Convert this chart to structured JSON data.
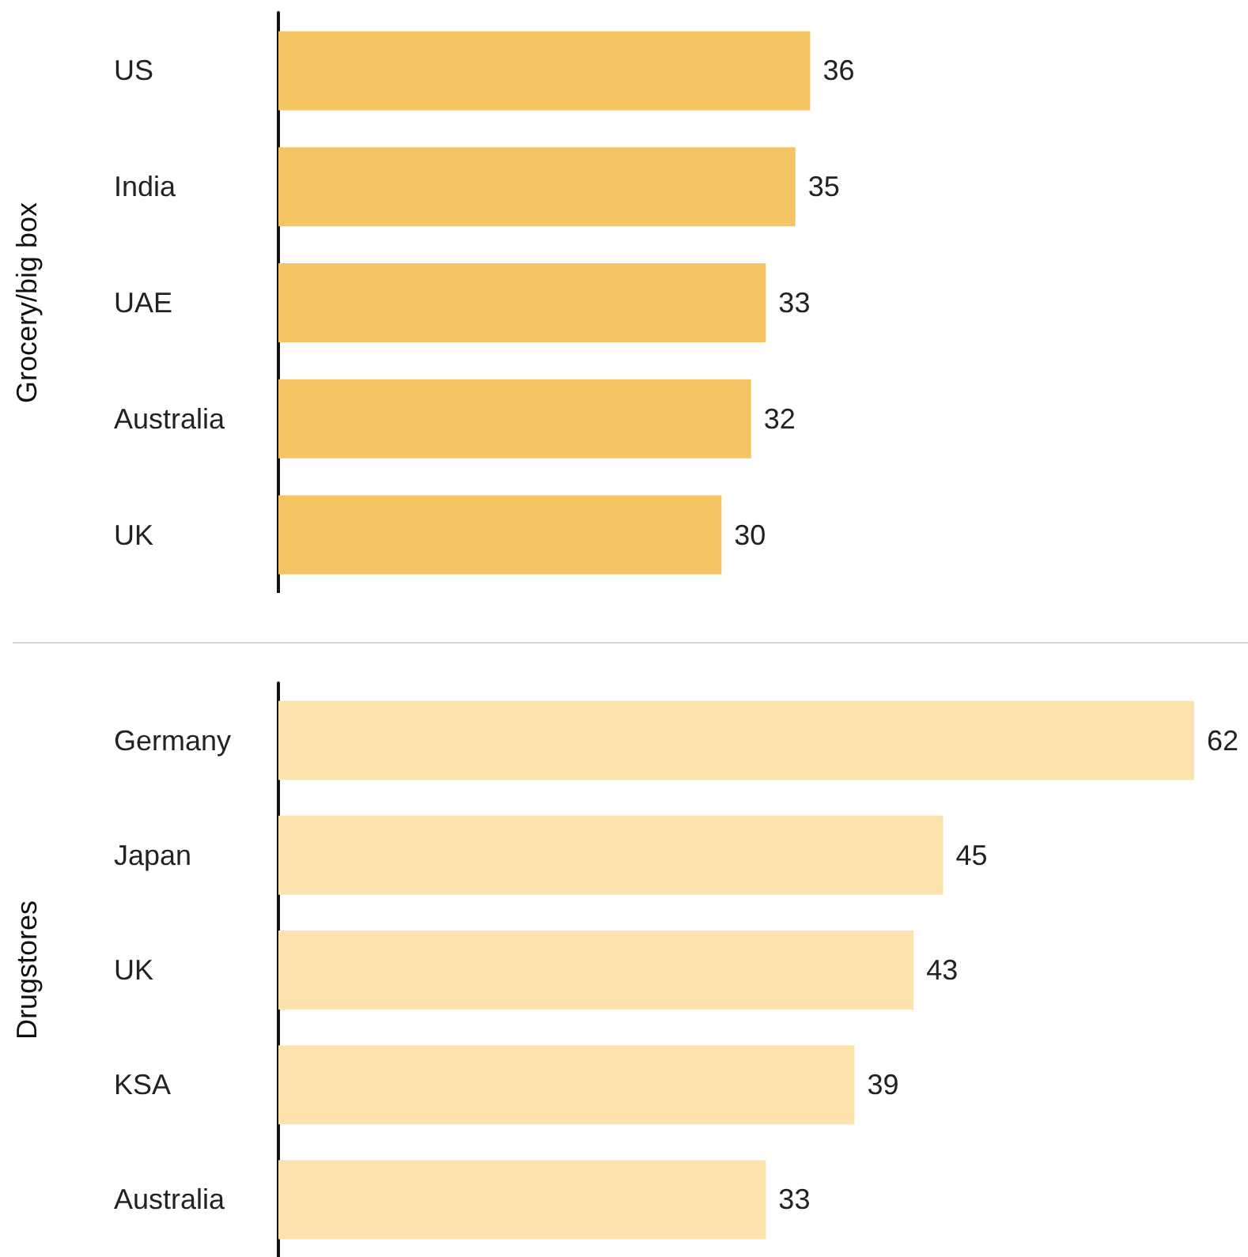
{
  "chart_data": [
    {
      "type": "bar",
      "orientation": "horizontal",
      "ylabel": "Grocery/big box",
      "categories": [
        "US",
        "India",
        "UAE",
        "Australia",
        "UK"
      ],
      "values": [
        36,
        35,
        33,
        32,
        30
      ],
      "color": "#f5c563",
      "data_labels": true
    },
    {
      "type": "bar",
      "orientation": "horizontal",
      "ylabel": "Drugstores",
      "categories": [
        "Germany",
        "Japan",
        "UK",
        "KSA",
        "Australia"
      ],
      "values": [
        62,
        45,
        43,
        39,
        33
      ],
      "color": "#fce3ae",
      "data_labels": true
    }
  ]
}
